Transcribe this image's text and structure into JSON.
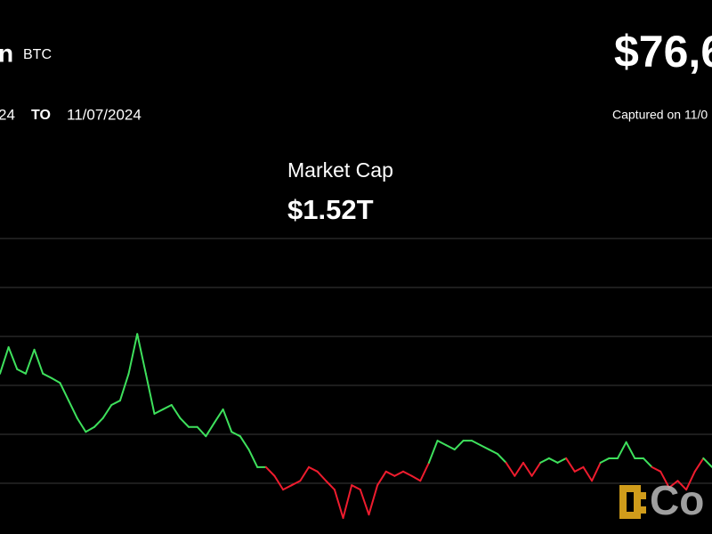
{
  "header": {
    "name": "n",
    "ticker": "BTC",
    "price": "$76,6",
    "date_from": "24",
    "to_label": "TO",
    "date_to": "11/07/2024",
    "captured": "Captured on 11/0"
  },
  "metric": {
    "label": "Market Cap",
    "value": "$1.52T"
  },
  "logo_text": "Co",
  "chart_data": {
    "type": "line",
    "ylim": [
      0,
      6
    ],
    "grid_lines": [
      1,
      2,
      3,
      4,
      5,
      6
    ],
    "baseline": 1.3,
    "up_color": "#3ee05c",
    "down_color": "#ee1c2e",
    "values": [
      3.24,
      3.78,
      3.33,
      3.24,
      3.73,
      3.24,
      3.15,
      3.05,
      2.69,
      2.33,
      2.05,
      2.15,
      2.33,
      2.6,
      2.69,
      3.24,
      4.05,
      3.24,
      2.42,
      2.51,
      2.6,
      2.33,
      2.15,
      2.15,
      1.96,
      2.24,
      2.51,
      2.05,
      1.96,
      1.69,
      1.33,
      1.33,
      1.15,
      0.87,
      0.96,
      1.05,
      1.33,
      1.24,
      1.05,
      0.87,
      0.29,
      0.96,
      0.87,
      0.36,
      0.96,
      1.24,
      1.15,
      1.24,
      1.15,
      1.05,
      1.42,
      1.87,
      1.78,
      1.69,
      1.87,
      1.87,
      1.78,
      1.69,
      1.6,
      1.42,
      1.15,
      1.42,
      1.15,
      1.42,
      1.51,
      1.42,
      1.51,
      1.24,
      1.33,
      1.05,
      1.42,
      1.51,
      1.51,
      1.84,
      1.51,
      1.51,
      1.33,
      1.24,
      0.91,
      1.05,
      0.87,
      1.24,
      1.51,
      1.33
    ]
  }
}
